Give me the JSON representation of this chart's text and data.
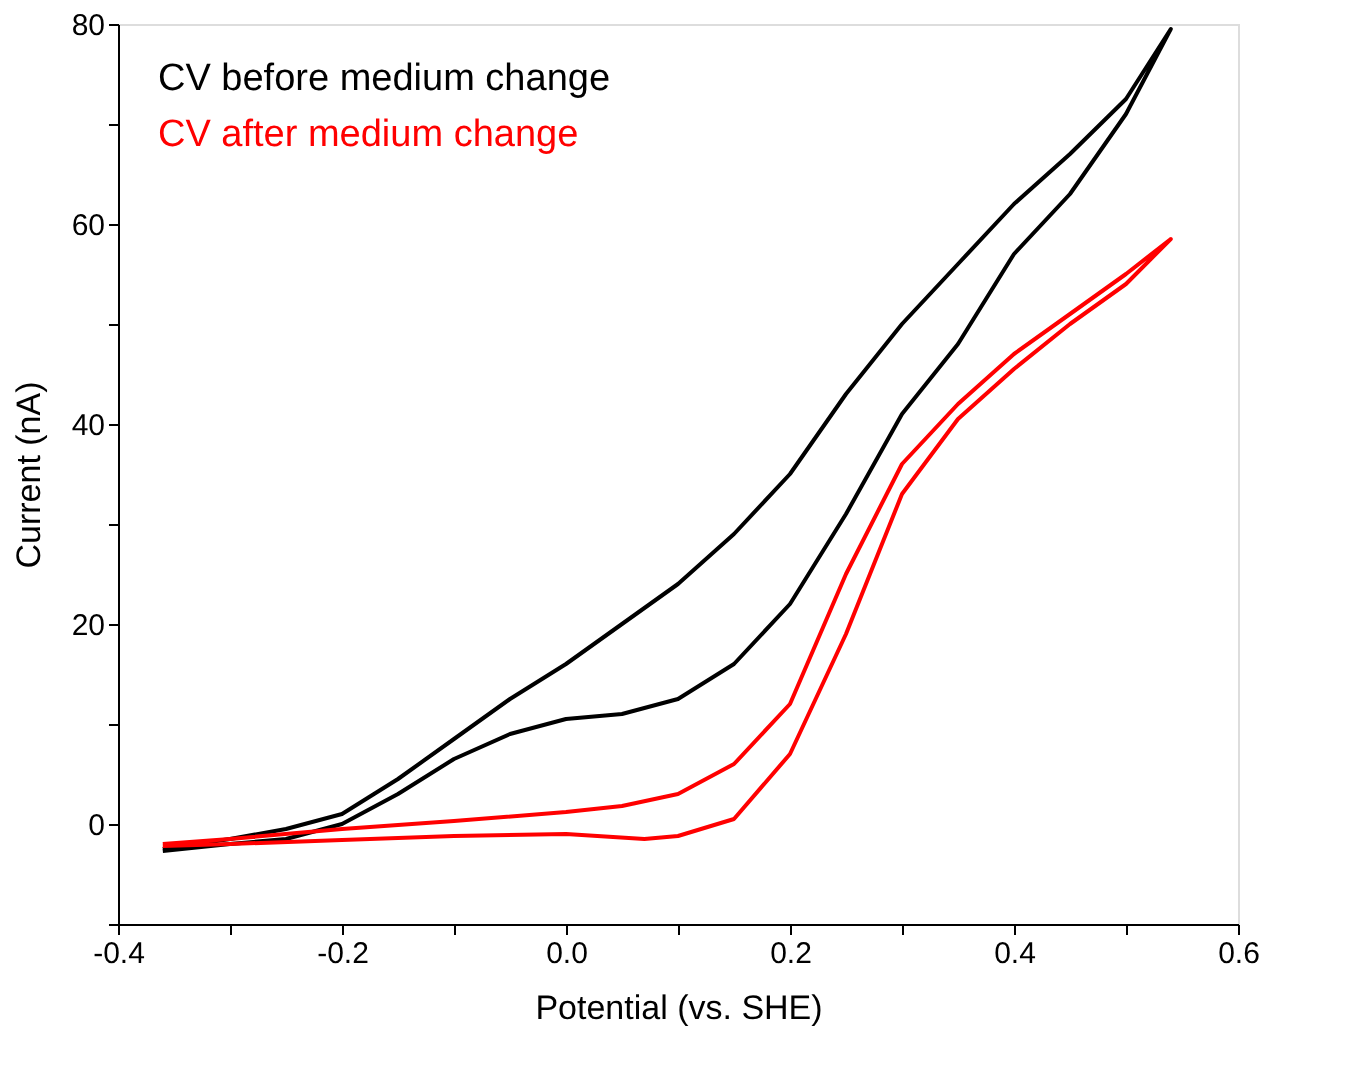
{
  "chart_data": {
    "type": "line",
    "xlabel": "Potential (vs. SHE)",
    "ylabel": "Current (nA)",
    "xlim": [
      -0.4,
      0.6
    ],
    "ylim": [
      -10,
      80
    ],
    "xticks": [
      {
        "value": -0.4,
        "label": "-0.4"
      },
      {
        "value": -0.3,
        "label": null
      },
      {
        "value": -0.2,
        "label": "-0.2"
      },
      {
        "value": -0.1,
        "label": null
      },
      {
        "value": 0,
        "label": "0.0"
      },
      {
        "value": 0.1,
        "label": null
      },
      {
        "value": 0.2,
        "label": "0.2"
      },
      {
        "value": 0.3,
        "label": null
      },
      {
        "value": 0.4,
        "label": "0.4"
      },
      {
        "value": 0.5,
        "label": null
      },
      {
        "value": 0.6,
        "label": "0.6"
      }
    ],
    "yticks": [
      {
        "value": -10,
        "label": null
      },
      0,
      {
        "value": 10,
        "label": null
      },
      20,
      {
        "value": 30,
        "label": null
      },
      40,
      {
        "value": 50,
        "label": null
      },
      60,
      {
        "value": 70,
        "label": null
      },
      80
    ],
    "grid": false,
    "legend": "top left",
    "marker": "none",
    "line_style": "solid",
    "series": [
      {
        "name": "CV before medium change",
        "color": "#000000",
        "x": [
          -0.36,
          -0.3,
          -0.25,
          -0.2,
          -0.15,
          -0.1,
          -0.05,
          0.0,
          0.05,
          0.1,
          0.15,
          0.2,
          0.25,
          0.3,
          0.35,
          0.4,
          0.45,
          0.5,
          0.54,
          0.5,
          0.45,
          0.4,
          0.35,
          0.3,
          0.25,
          0.2,
          0.15,
          0.1,
          0.05,
          0.0,
          -0.05,
          -0.1,
          -0.15,
          -0.2,
          -0.25,
          -0.3,
          -0.36
        ],
        "values": [
          -2.5,
          -1.5,
          -0.5,
          1,
          4.5,
          8.5,
          12.5,
          16,
          20,
          24,
          29,
          35,
          43,
          50,
          56,
          62,
          67,
          72.5,
          79.5,
          71,
          63,
          57,
          48,
          41,
          31,
          22,
          16,
          12.5,
          11,
          10.5,
          9,
          6.5,
          3,
          0,
          -1.5,
          -2,
          -2.7
        ]
      },
      {
        "name": "CV after medium change",
        "color": "#ff0000",
        "x": [
          -0.36,
          -0.3,
          -0.2,
          -0.1,
          0.0,
          0.05,
          0.1,
          0.15,
          0.2,
          0.25,
          0.3,
          0.35,
          0.4,
          0.45,
          0.5,
          0.54,
          0.5,
          0.45,
          0.4,
          0.35,
          0.3,
          0.25,
          0.2,
          0.15,
          0.1,
          0.07,
          0.0,
          -0.1,
          -0.2,
          -0.3,
          -0.36
        ],
        "values": [
          -2,
          -1.5,
          -0.5,
          0.3,
          1.2,
          1.8,
          3,
          6,
          12,
          25,
          36,
          42,
          47,
          51,
          55,
          58.5,
          54,
          50,
          45.5,
          40.5,
          33,
          19,
          7,
          0.5,
          -1.2,
          -1.5,
          -1,
          -1.2,
          -1.6,
          -2,
          -2.2
        ]
      }
    ]
  }
}
